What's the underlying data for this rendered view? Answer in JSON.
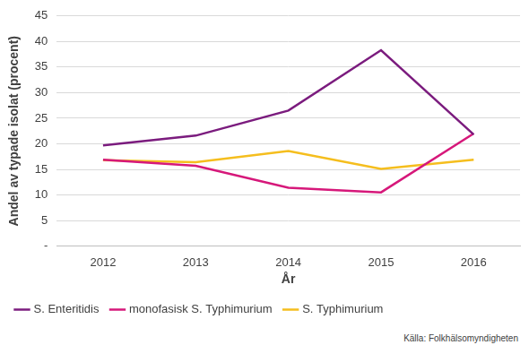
{
  "chart_data": {
    "type": "line",
    "x_label": "År",
    "y_label": "Andel av typade isolat (procent)",
    "source": "Källa: Folkhälsomyndigheten",
    "categories": [
      "2012",
      "2013",
      "2014",
      "2015",
      "2016"
    ],
    "series": [
      {
        "name": "S. Enteritidis",
        "color": "#7b1c7e",
        "values": [
          19.7,
          21.6,
          26.5,
          38.3,
          21.8
        ]
      },
      {
        "name": "monofasisk S. Typhimurium",
        "color": "#d6187a",
        "values": [
          16.9,
          15.7,
          11.4,
          10.5,
          22.0
        ]
      },
      {
        "name": "S. Typhimurium",
        "color": "#f5be1e",
        "values": [
          16.8,
          16.4,
          18.6,
          15.1,
          16.9
        ]
      }
    ],
    "ylim": [
      0,
      45
    ],
    "yticks": [
      {
        "value": 0,
        "label": "-"
      },
      5,
      10,
      15,
      20,
      25,
      30,
      35,
      40,
      45
    ],
    "grid": true,
    "legend": "bottom-left"
  }
}
